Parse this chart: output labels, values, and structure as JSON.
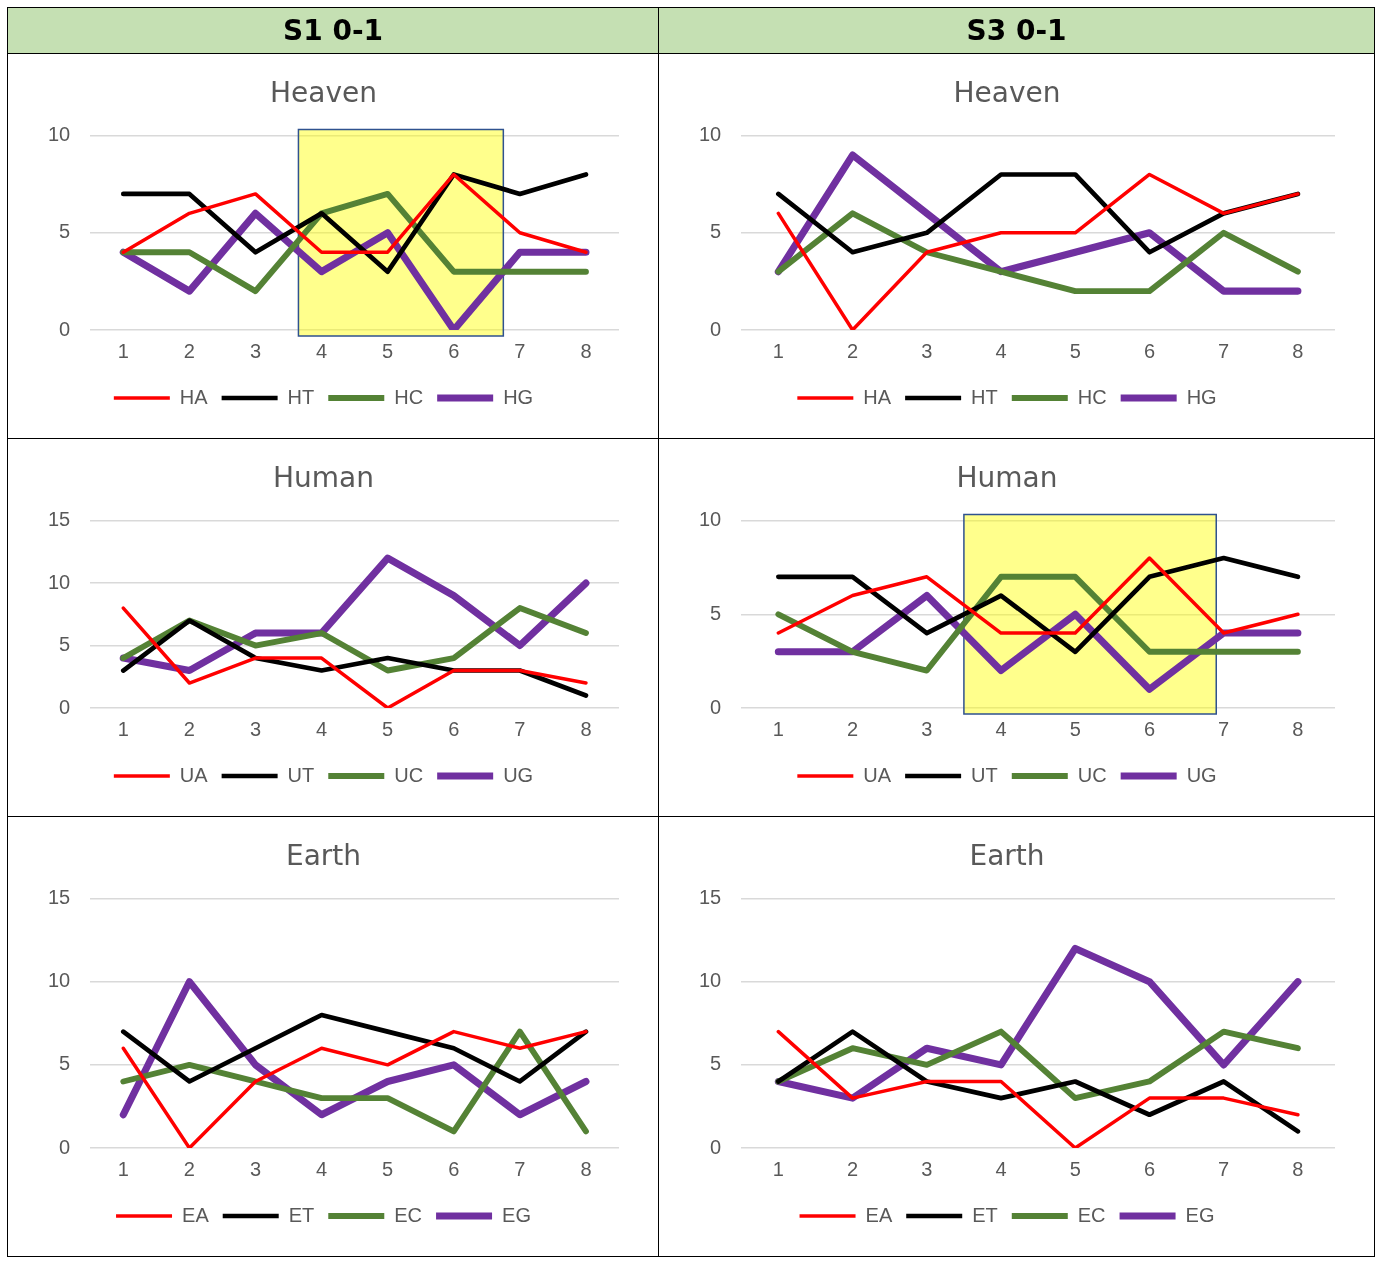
{
  "chart_data": [
    {
      "type": "other",
      "annotations": [
        "S1 0-1",
        "S3 0-1"
      ]
    },
    {
      "type": "line",
      "title": "Heaven",
      "x": [
        1,
        2,
        3,
        4,
        5,
        6,
        7,
        8
      ],
      "xlim": [
        0.5,
        8.5
      ],
      "xticks": [
        1,
        2,
        3,
        4,
        5,
        6,
        7,
        8
      ],
      "ylim": [
        0,
        10
      ],
      "yticks": [
        0,
        5,
        10
      ],
      "grid": "y",
      "legend": "bottom",
      "marker": "none",
      "series": [
        {
          "name": "HA",
          "color": "#ff0000",
          "values": [
            4,
            6,
            7,
            4,
            4,
            8,
            5,
            4
          ]
        },
        {
          "name": "HT",
          "color": "#000000",
          "values": [
            7,
            7,
            4,
            6,
            3,
            8,
            7,
            8
          ]
        },
        {
          "name": "HC",
          "color": "#548235",
          "values": [
            4,
            4,
            2,
            6,
            7,
            3,
            3,
            3
          ]
        },
        {
          "name": "HG",
          "color": "#7030a0",
          "values": [
            4,
            2,
            6,
            3,
            5,
            0,
            4,
            4
          ]
        }
      ],
      "bands": [
        {
          "axis": "x",
          "from": 3.65,
          "to": 6.75,
          "color": "#ffff00"
        }
      ]
    },
    {
      "type": "line",
      "title": "Heaven",
      "x": [
        1,
        2,
        3,
        4,
        5,
        6,
        7,
        8
      ],
      "xlim": [
        0.5,
        8.5
      ],
      "xticks": [
        1,
        2,
        3,
        4,
        5,
        6,
        7,
        8
      ],
      "ylim": [
        0,
        10
      ],
      "yticks": [
        0,
        5,
        10
      ],
      "grid": "y",
      "legend": "bottom",
      "marker": "none",
      "series": [
        {
          "name": "HA",
          "color": "#ff0000",
          "values": [
            6,
            0,
            4,
            5,
            5,
            8,
            6,
            7
          ]
        },
        {
          "name": "HT",
          "color": "#000000",
          "values": [
            7,
            4,
            5,
            8,
            8,
            4,
            6,
            7
          ]
        },
        {
          "name": "HC",
          "color": "#548235",
          "values": [
            3,
            6,
            4,
            3,
            2,
            2,
            5,
            3
          ]
        },
        {
          "name": "HG",
          "color": "#7030a0",
          "values": [
            3,
            9,
            6,
            3,
            4,
            5,
            2,
            2
          ]
        }
      ]
    },
    {
      "type": "line",
      "title": "Human",
      "x": [
        1,
        2,
        3,
        4,
        5,
        6,
        7,
        8
      ],
      "xlim": [
        0.5,
        8.5
      ],
      "xticks": [
        1,
        2,
        3,
        4,
        5,
        6,
        7,
        8
      ],
      "ylim": [
        0,
        15
      ],
      "yticks": [
        0,
        5,
        10,
        15
      ],
      "grid": "y",
      "legend": "bottom",
      "marker": "none",
      "series": [
        {
          "name": "UA",
          "color": "#ff0000",
          "values": [
            8,
            2,
            4,
            4,
            0,
            3,
            3,
            2
          ]
        },
        {
          "name": "UT",
          "color": "#000000",
          "values": [
            3,
            7,
            4,
            3,
            4,
            3,
            3,
            1
          ]
        },
        {
          "name": "UC",
          "color": "#548235",
          "values": [
            4,
            7,
            5,
            6,
            3,
            4,
            8,
            6
          ]
        },
        {
          "name": "UG",
          "color": "#7030a0",
          "values": [
            4,
            3,
            6,
            6,
            12,
            9,
            5,
            10
          ]
        }
      ]
    },
    {
      "type": "line",
      "title": "Human",
      "x": [
        1,
        2,
        3,
        4,
        5,
        6,
        7,
        8
      ],
      "xlim": [
        0.5,
        8.5
      ],
      "xticks": [
        1,
        2,
        3,
        4,
        5,
        6,
        7,
        8
      ],
      "ylim": [
        0,
        10
      ],
      "yticks": [
        0,
        5,
        10
      ],
      "grid": "y",
      "legend": "bottom",
      "marker": "none",
      "series": [
        {
          "name": "UA",
          "color": "#ff0000",
          "values": [
            4,
            6,
            7,
            4,
            4,
            8,
            4,
            5
          ]
        },
        {
          "name": "UT",
          "color": "#000000",
          "values": [
            7,
            7,
            4,
            6,
            3,
            7,
            8,
            7
          ]
        },
        {
          "name": "UC",
          "color": "#548235",
          "values": [
            5,
            3,
            2,
            7,
            7,
            3,
            3,
            3
          ]
        },
        {
          "name": "UG",
          "color": "#7030a0",
          "values": [
            3,
            3,
            6,
            2,
            5,
            1,
            4,
            4
          ]
        }
      ],
      "bands": [
        {
          "axis": "x",
          "from": 3.5,
          "to": 6.9,
          "color": "#ffff00"
        }
      ]
    },
    {
      "type": "line",
      "title": "Earth",
      "x": [
        1,
        2,
        3,
        4,
        5,
        6,
        7,
        8
      ],
      "xlim": [
        0.5,
        8.5
      ],
      "xticks": [
        1,
        2,
        3,
        4,
        5,
        6,
        7,
        8
      ],
      "ylim": [
        0,
        15
      ],
      "yticks": [
        0,
        5,
        10,
        15
      ],
      "grid": "y",
      "legend": "bottom",
      "marker": "none",
      "series": [
        {
          "name": "EA",
          "color": "#ff0000",
          "values": [
            6,
            0,
            4,
            6,
            5,
            7,
            6,
            7
          ]
        },
        {
          "name": "ET",
          "color": "#000000",
          "values": [
            7,
            4,
            6,
            8,
            7,
            6,
            4,
            7
          ]
        },
        {
          "name": "EC",
          "color": "#548235",
          "values": [
            4,
            5,
            4,
            3,
            3,
            1,
            7,
            1
          ]
        },
        {
          "name": "EG",
          "color": "#7030a0",
          "values": [
            2,
            10,
            5,
            2,
            4,
            5,
            2,
            4
          ]
        }
      ]
    },
    {
      "type": "line",
      "title": "Earth",
      "x": [
        1,
        2,
        3,
        4,
        5,
        6,
        7,
        8
      ],
      "xlim": [
        0.5,
        8.5
      ],
      "xticks": [
        1,
        2,
        3,
        4,
        5,
        6,
        7,
        8
      ],
      "ylim": [
        0,
        15
      ],
      "yticks": [
        0,
        5,
        10,
        15
      ],
      "grid": "y",
      "legend": "bottom",
      "marker": "none",
      "series": [
        {
          "name": "EA",
          "color": "#ff0000",
          "values": [
            7,
            3,
            4,
            4,
            0,
            3,
            3,
            2
          ]
        },
        {
          "name": "ET",
          "color": "#000000",
          "values": [
            4,
            7,
            4,
            3,
            4,
            2,
            4,
            1
          ]
        },
        {
          "name": "EC",
          "color": "#548235",
          "values": [
            4,
            6,
            5,
            7,
            3,
            4,
            7,
            6
          ]
        },
        {
          "name": "EG",
          "color": "#7030a0",
          "values": [
            4,
            3,
            6,
            5,
            12,
            10,
            5,
            10
          ]
        }
      ]
    }
  ]
}
